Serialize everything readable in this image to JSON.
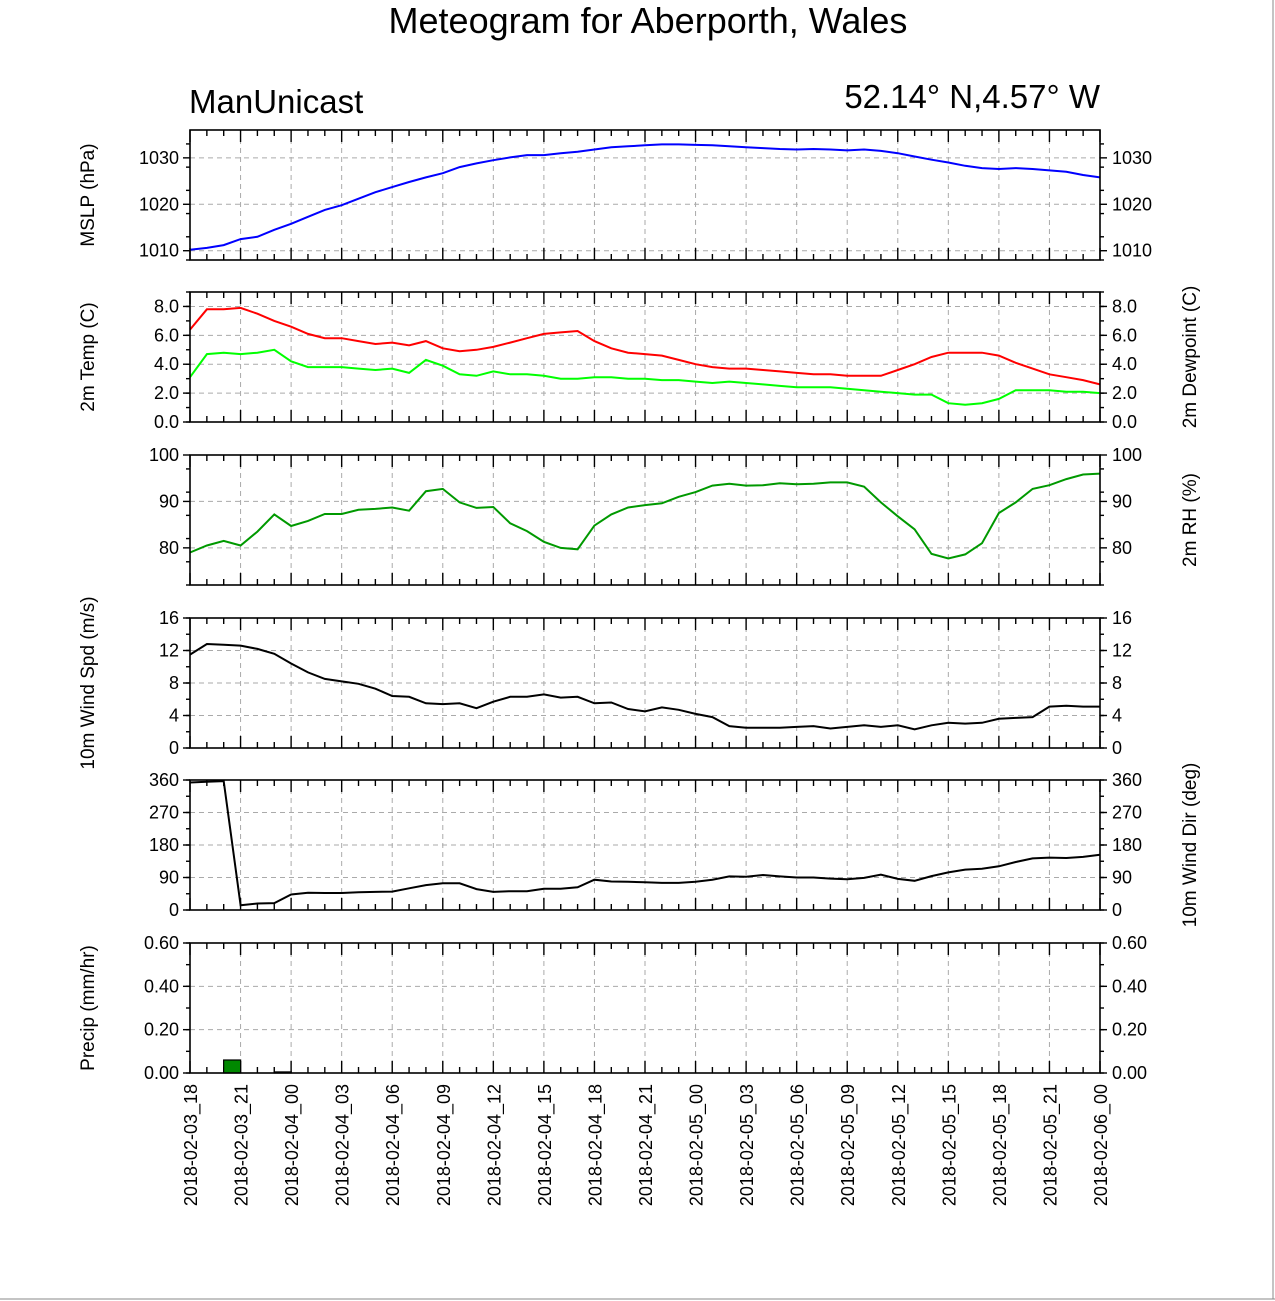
{
  "title": "Meteogram for Aberporth, Wales",
  "source_label": "ManUnicast",
  "location_label": "52.14° N,4.57° W",
  "chart_data": [
    {
      "type": "line",
      "id": "mslp",
      "ylabel": "MSLP (hPa)",
      "ylabel_right": "",
      "ylim": [
        1008,
        1036
      ],
      "yticks": [
        1010,
        1020,
        1030
      ],
      "ytick_labels": [
        "1010",
        "1020",
        "1030"
      ],
      "series": [
        {
          "color": "#0000ff",
          "x": [
            0,
            1,
            2,
            3,
            4,
            5,
            6,
            7,
            8,
            9,
            10,
            11,
            12,
            13,
            14,
            15,
            16,
            17,
            18,
            19,
            20,
            21,
            22,
            23,
            24,
            25,
            26,
            27,
            28,
            29,
            30,
            31,
            32,
            33,
            34,
            35,
            36,
            37,
            38,
            39,
            40,
            41,
            42,
            43,
            44,
            45,
            46,
            47,
            48,
            49,
            50,
            51,
            52,
            53,
            54
          ],
          "values": [
            1010.2,
            1010.6,
            1011.2,
            1012.5,
            1013.0,
            1014.5,
            1015.8,
            1017.3,
            1018.8,
            1019.8,
            1021.2,
            1022.6,
            1023.7,
            1024.8,
            1025.8,
            1026.7,
            1028.0,
            1028.8,
            1029.5,
            1030.1,
            1030.6,
            1030.6,
            1031.0,
            1031.3,
            1031.8,
            1032.3,
            1032.5,
            1032.7,
            1032.9,
            1032.9,
            1032.8,
            1032.7,
            1032.5,
            1032.3,
            1032.1,
            1031.9,
            1031.8,
            1031.9,
            1031.8,
            1031.6,
            1031.8,
            1031.5,
            1031.0,
            1030.3,
            1029.6,
            1029.0,
            1028.3,
            1027.8,
            1027.6,
            1027.8,
            1027.6,
            1027.3,
            1027.0,
            1026.3,
            1025.8
          ]
        }
      ]
    },
    {
      "type": "line",
      "id": "temp",
      "ylabel": "2m Temp (C)",
      "ylabel_right": "2m Dewpoint (C)",
      "ylim": [
        0,
        9.0
      ],
      "yticks": [
        0,
        2,
        4,
        6,
        8
      ],
      "ytick_labels": [
        "0.0",
        "2.0",
        "4.0",
        "6.0",
        "8.0"
      ],
      "series": [
        {
          "color": "#ff0000",
          "x": [
            0,
            1,
            2,
            3,
            4,
            5,
            6,
            7,
            8,
            9,
            10,
            11,
            12,
            13,
            14,
            15,
            16,
            17,
            18,
            19,
            20,
            21,
            22,
            23,
            24,
            25,
            26,
            27,
            28,
            29,
            30,
            31,
            32,
            33,
            34,
            35,
            36,
            37,
            38,
            39,
            40,
            41,
            42,
            43,
            44,
            45,
            46,
            47,
            48,
            49,
            50,
            51,
            52,
            53,
            54
          ],
          "values": [
            6.4,
            7.8,
            7.8,
            7.9,
            7.5,
            7.0,
            6.6,
            6.1,
            5.8,
            5.8,
            5.6,
            5.4,
            5.5,
            5.3,
            5.6,
            5.1,
            4.9,
            5.0,
            5.2,
            5.5,
            5.8,
            6.1,
            6.2,
            6.3,
            5.6,
            5.1,
            4.8,
            4.7,
            4.6,
            4.3,
            4.0,
            3.8,
            3.7,
            3.7,
            3.6,
            3.5,
            3.4,
            3.3,
            3.3,
            3.2,
            3.2,
            3.2,
            3.6,
            4.0,
            4.5,
            4.8,
            4.8,
            4.8,
            4.6,
            4.1,
            3.7,
            3.3,
            3.1,
            2.9,
            2.6
          ]
        },
        {
          "color": "#00ff00",
          "x": [
            0,
            1,
            2,
            3,
            4,
            5,
            6,
            7,
            8,
            9,
            10,
            11,
            12,
            13,
            14,
            15,
            16,
            17,
            18,
            19,
            20,
            21,
            22,
            23,
            24,
            25,
            26,
            27,
            28,
            29,
            30,
            31,
            32,
            33,
            34,
            35,
            36,
            37,
            38,
            39,
            40,
            41,
            42,
            43,
            44,
            45,
            46,
            47,
            48,
            49,
            50,
            51,
            52,
            53,
            54
          ],
          "values": [
            3.1,
            4.7,
            4.8,
            4.7,
            4.8,
            5.0,
            4.2,
            3.8,
            3.8,
            3.8,
            3.7,
            3.6,
            3.7,
            3.4,
            4.3,
            3.9,
            3.3,
            3.2,
            3.5,
            3.3,
            3.3,
            3.2,
            3.0,
            3.0,
            3.1,
            3.1,
            3.0,
            3.0,
            2.9,
            2.9,
            2.8,
            2.7,
            2.8,
            2.7,
            2.6,
            2.5,
            2.4,
            2.4,
            2.4,
            2.3,
            2.2,
            2.1,
            2.0,
            1.9,
            1.9,
            1.3,
            1.2,
            1.3,
            1.6,
            2.2,
            2.2,
            2.2,
            2.1,
            2.1,
            2.0
          ]
        }
      ]
    },
    {
      "type": "line",
      "id": "rh",
      "ylabel": "",
      "ylabel_right": "2m RH (%)",
      "ylim": [
        72,
        100
      ],
      "yticks": [
        80,
        90,
        100
      ],
      "ytick_labels": [
        "80",
        "90",
        "100"
      ],
      "series": [
        {
          "color": "#009900",
          "x": [
            0,
            1,
            2,
            3,
            4,
            5,
            6,
            7,
            8,
            9,
            10,
            11,
            12,
            13,
            14,
            15,
            16,
            17,
            18,
            19,
            20,
            21,
            22,
            23,
            24,
            25,
            26,
            27,
            28,
            29,
            30,
            31,
            32,
            33,
            34,
            35,
            36,
            37,
            38,
            39,
            40,
            41,
            42,
            43,
            44,
            45,
            46,
            47,
            48,
            49,
            50,
            51,
            52,
            53,
            54
          ],
          "values": [
            79.0,
            80.5,
            81.5,
            80.5,
            83.5,
            87.2,
            84.7,
            85.8,
            87.3,
            87.3,
            88.2,
            88.4,
            88.7,
            88.0,
            92.2,
            92.7,
            89.8,
            88.6,
            88.8,
            85.3,
            83.6,
            81.3,
            80.0,
            79.7,
            84.8,
            87.2,
            88.7,
            89.2,
            89.6,
            91.0,
            92.0,
            93.4,
            93.8,
            93.4,
            93.5,
            93.9,
            93.7,
            93.8,
            94.1,
            94.1,
            93.2,
            89.8,
            86.8,
            84.0,
            78.7,
            77.7,
            78.6,
            81.0,
            87.5,
            89.8,
            92.7,
            93.5,
            94.8,
            95.8,
            96.0
          ]
        }
      ]
    },
    {
      "type": "line",
      "id": "windspd",
      "ylabel": "10m Wind Spd (m/s)",
      "ylabel_right": "",
      "ylim": [
        0,
        16
      ],
      "yticks": [
        0,
        4,
        8,
        12,
        16
      ],
      "ytick_labels": [
        "0",
        "4",
        "8",
        "12",
        "16"
      ],
      "series": [
        {
          "color": "#000000",
          "x": [
            0,
            1,
            2,
            3,
            4,
            5,
            6,
            7,
            8,
            9,
            10,
            11,
            12,
            13,
            14,
            15,
            16,
            17,
            18,
            19,
            20,
            21,
            22,
            23,
            24,
            25,
            26,
            27,
            28,
            29,
            30,
            31,
            32,
            33,
            34,
            35,
            36,
            37,
            38,
            39,
            40,
            41,
            42,
            43,
            44,
            45,
            46,
            47,
            48,
            49,
            50,
            51,
            52,
            53,
            54
          ],
          "values": [
            11.5,
            12.8,
            12.7,
            12.6,
            12.2,
            11.6,
            10.4,
            9.3,
            8.5,
            8.2,
            7.9,
            7.3,
            6.4,
            6.3,
            5.5,
            5.4,
            5.5,
            4.9,
            5.7,
            6.3,
            6.3,
            6.6,
            6.2,
            6.3,
            5.5,
            5.6,
            4.8,
            4.5,
            5.0,
            4.7,
            4.2,
            3.8,
            2.7,
            2.5,
            2.5,
            2.5,
            2.6,
            2.7,
            2.4,
            2.6,
            2.8,
            2.6,
            2.8,
            2.3,
            2.8,
            3.1,
            3.0,
            3.1,
            3.6,
            3.7,
            3.8,
            5.1,
            5.2,
            5.1,
            5.1
          ]
        }
      ]
    },
    {
      "type": "line",
      "id": "winddir",
      "ylabel": "",
      "ylabel_right": "10m Wind Dir (deg)",
      "ylim": [
        0,
        360
      ],
      "yticks": [
        0,
        90,
        180,
        270,
        360
      ],
      "ytick_labels": [
        "0",
        "90",
        "180",
        "270",
        "360"
      ],
      "series": [
        {
          "color": "#000000",
          "x": [
            0,
            1,
            2,
            3,
            4,
            5,
            6,
            7,
            8,
            9,
            10,
            11,
            12,
            13,
            14,
            15,
            16,
            17,
            18,
            19,
            20,
            21,
            22,
            23,
            24,
            25,
            26,
            27,
            28,
            29,
            30,
            31,
            32,
            33,
            34,
            35,
            36,
            37,
            38,
            39,
            40,
            41,
            42,
            43,
            44,
            45,
            46,
            47,
            48,
            49,
            50,
            51,
            52,
            53,
            54
          ],
          "values": [
            353,
            355,
            357,
            13,
            18,
            19,
            43,
            48,
            47,
            47,
            49,
            50,
            51,
            60,
            69,
            74,
            74,
            58,
            50,
            52,
            52,
            59,
            59,
            63,
            84,
            79,
            78,
            77,
            75,
            75,
            78,
            84,
            93,
            92,
            97,
            93,
            90,
            90,
            87,
            85,
            89,
            98,
            86,
            81,
            94,
            104,
            112,
            114,
            121,
            133,
            143,
            145,
            144,
            147,
            153
          ]
        }
      ]
    },
    {
      "type": "bar",
      "id": "precip",
      "ylabel": "Precip (mm/hr)",
      "ylabel_right": "",
      "ylim": [
        0,
        0.6
      ],
      "yticks": [
        0,
        0.2,
        0.4,
        0.6
      ],
      "ytick_labels": [
        "0.00",
        "0.20",
        "0.40",
        "0.60"
      ],
      "color": "#008800",
      "x": [
        2.5,
        5.5
      ],
      "values": [
        0.06,
        0.005
      ]
    }
  ],
  "x_axis": {
    "range": [
      0,
      54
    ],
    "tick_positions": [
      0,
      3,
      6,
      9,
      12,
      15,
      18,
      21,
      24,
      27,
      30,
      33,
      36,
      39,
      42,
      45,
      48,
      51,
      54
    ],
    "tick_labels": [
      "2018-02-03_18",
      "2018-02-03_21",
      "2018-02-04_00",
      "2018-02-04_03",
      "2018-02-04_06",
      "2018-02-04_09",
      "2018-02-04_12",
      "2018-02-04_15",
      "2018-02-04_18",
      "2018-02-04_21",
      "2018-02-05_00",
      "2018-02-05_03",
      "2018-02-05_06",
      "2018-02-05_09",
      "2018-02-05_12",
      "2018-02-05_15",
      "2018-02-05_18",
      "2018-02-05_21",
      "2018-02-06_00"
    ]
  }
}
